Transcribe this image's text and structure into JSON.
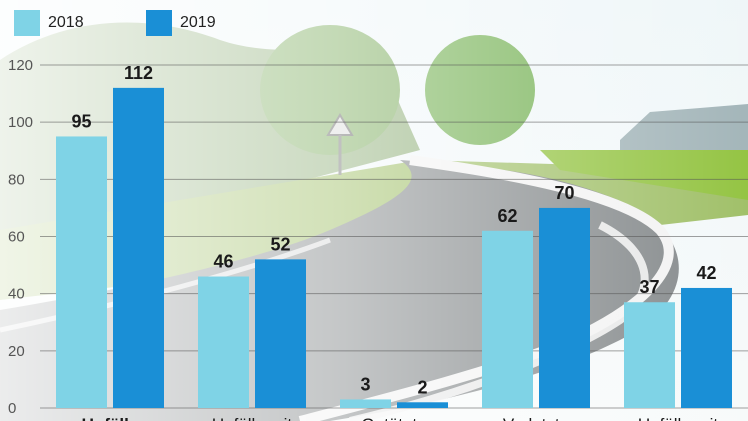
{
  "colors": {
    "y2018": "#7fd3e6",
    "y2019": "#1a8fd6",
    "text": "#1a1a1a",
    "axis": "#555555"
  },
  "chart_data": {
    "type": "bar",
    "title": "",
    "xlabel": "",
    "ylabel": "",
    "ylim": [
      0,
      120
    ],
    "yticks": [
      0,
      20,
      40,
      60,
      80,
      100,
      120
    ],
    "grid": true,
    "legend_position": "top-left",
    "categories": [
      "Unfälle",
      "Unfälle mit",
      "Getötete",
      "Verletzte",
      "Unfälle mit"
    ],
    "series": [
      {
        "name": "2018",
        "values": [
          95,
          46,
          3,
          62,
          37
        ]
      },
      {
        "name": "2019",
        "values": [
          112,
          52,
          2,
          70,
          42
        ]
      }
    ]
  }
}
